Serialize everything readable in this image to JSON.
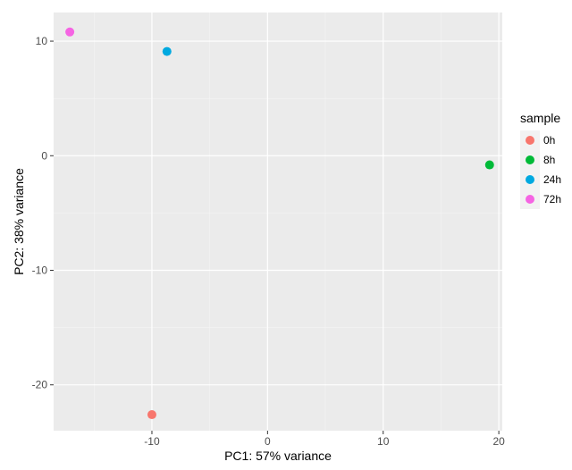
{
  "chart_data": {
    "type": "scatter",
    "title": "",
    "xlabel": "PC1: 57% variance",
    "ylabel": "PC2: 38% variance",
    "xlim": [
      -18.5,
      20.3
    ],
    "ylim": [
      -24,
      12.5
    ],
    "xticks": [
      -10,
      0,
      10,
      20
    ],
    "yticks": [
      -20,
      -10,
      0,
      10
    ],
    "grid": true,
    "legend": {
      "title": "sample",
      "position": "right"
    },
    "series": [
      {
        "name": "0h",
        "color": "#F8766D",
        "points": [
          {
            "x": -10.0,
            "y": -22.6
          }
        ]
      },
      {
        "name": "8h",
        "color": "#00BA38",
        "points": [
          {
            "x": 19.2,
            "y": -0.8
          }
        ]
      },
      {
        "name": "24h",
        "color": "#00A9E0",
        "points": [
          {
            "x": -8.7,
            "y": 9.1
          }
        ]
      },
      {
        "name": "72h",
        "color": "#F564E3",
        "points": [
          {
            "x": -17.1,
            "y": 10.8
          }
        ]
      }
    ]
  }
}
